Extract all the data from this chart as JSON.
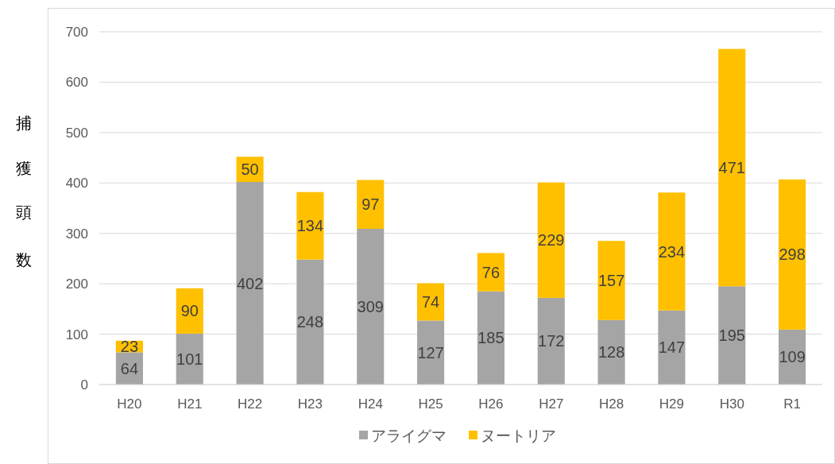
{
  "chart_data": {
    "type": "bar",
    "stacked": true,
    "ylabel": "捕獲頭数",
    "categories": [
      "H20",
      "H21",
      "H22",
      "H23",
      "H24",
      "H25",
      "H26",
      "H27",
      "H28",
      "H29",
      "H30",
      "R1"
    ],
    "series": [
      {
        "name": "アライグマ",
        "color": "#a5a5a5",
        "values": [
          64,
          101,
          402,
          248,
          309,
          127,
          185,
          172,
          128,
          147,
          195,
          109
        ]
      },
      {
        "name": "ヌートリア",
        "color": "#ffc000",
        "values": [
          23,
          90,
          50,
          134,
          97,
          74,
          76,
          229,
          157,
          234,
          471,
          298
        ]
      }
    ],
    "ylim": [
      0,
      700
    ],
    "yticks": [
      0,
      100,
      200,
      300,
      400,
      500,
      600,
      700
    ],
    "grid": "y",
    "legend": "bottom",
    "data_labels": true
  }
}
